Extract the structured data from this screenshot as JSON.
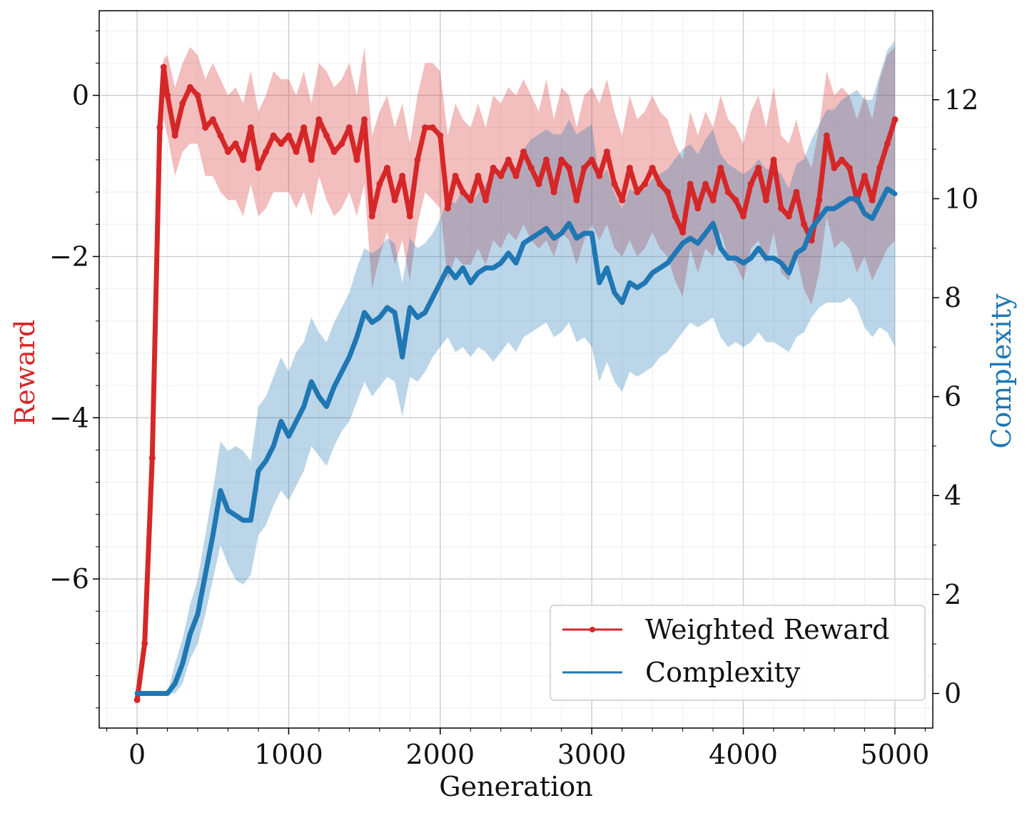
{
  "chart_data": {
    "type": "line",
    "title": "",
    "xlabel": "Generation",
    "ylabel_left": "Reward",
    "ylabel_right": "Complexity",
    "xlim": [
      -250,
      5250
    ],
    "ylim_left": [
      -7.85,
      1.05
    ],
    "ylim_right": [
      -0.7,
      13.8
    ],
    "x_ticks": [
      0,
      1000,
      2000,
      3000,
      4000,
      5000
    ],
    "x_tick_labels": [
      "0",
      "1000",
      "2000",
      "3000",
      "4000",
      "5000"
    ],
    "y_left_ticks": [
      -6,
      -4,
      -2,
      0
    ],
    "y_left_tick_labels": [
      "−6",
      "−4",
      "−2",
      "0"
    ],
    "y_right_ticks": [
      0,
      2,
      4,
      6,
      8,
      10,
      12
    ],
    "y_right_tick_labels": [
      "0",
      "2",
      "4",
      "6",
      "8",
      "10",
      "12"
    ],
    "grid": true,
    "legend_position": "lower-right",
    "colors": {
      "reward": "#d62728",
      "complexity": "#1f77b4"
    },
    "x": [
      0,
      50,
      100,
      150,
      175,
      200,
      250,
      300,
      350,
      400,
      450,
      500,
      550,
      600,
      650,
      700,
      750,
      800,
      850,
      900,
      950,
      1000,
      1050,
      1100,
      1150,
      1200,
      1250,
      1300,
      1350,
      1400,
      1450,
      1500,
      1550,
      1600,
      1650,
      1700,
      1750,
      1800,
      1850,
      1900,
      1950,
      2000,
      2050,
      2100,
      2150,
      2200,
      2250,
      2300,
      2350,
      2400,
      2450,
      2500,
      2550,
      2600,
      2650,
      2700,
      2750,
      2800,
      2850,
      2900,
      2950,
      3000,
      3050,
      3100,
      3150,
      3200,
      3250,
      3300,
      3350,
      3400,
      3450,
      3500,
      3550,
      3600,
      3650,
      3700,
      3750,
      3800,
      3850,
      3900,
      3950,
      4000,
      4050,
      4100,
      4150,
      4200,
      4250,
      4300,
      4350,
      4400,
      4450,
      4500,
      4550,
      4600,
      4650,
      4700,
      4750,
      4800,
      4850,
      4900,
      4950,
      5000
    ],
    "series": [
      {
        "name": "Weighted Reward",
        "axis": "left",
        "values": [
          -7.5,
          -6.8,
          -4.5,
          -0.4,
          0.35,
          0.0,
          -0.5,
          -0.1,
          0.1,
          0.0,
          -0.4,
          -0.3,
          -0.5,
          -0.7,
          -0.6,
          -0.8,
          -0.4,
          -0.9,
          -0.7,
          -0.5,
          -0.6,
          -0.5,
          -0.7,
          -0.4,
          -0.8,
          -0.3,
          -0.5,
          -0.7,
          -0.6,
          -0.4,
          -0.8,
          -0.3,
          -1.5,
          -1.1,
          -0.9,
          -1.3,
          -1.0,
          -1.5,
          -0.8,
          -0.4,
          -0.4,
          -0.5,
          -1.4,
          -1.0,
          -1.2,
          -1.3,
          -1.0,
          -1.3,
          -0.9,
          -1.0,
          -0.8,
          -1.0,
          -0.7,
          -0.9,
          -1.1,
          -0.8,
          -1.2,
          -0.8,
          -0.9,
          -1.3,
          -0.9,
          -0.8,
          -1.0,
          -0.7,
          -1.1,
          -1.3,
          -0.9,
          -1.2,
          -1.1,
          -0.9,
          -1.1,
          -1.2,
          -1.5,
          -1.7,
          -1.1,
          -1.4,
          -1.1,
          -1.3,
          -0.9,
          -1.2,
          -1.3,
          -1.5,
          -1.1,
          -0.9,
          -1.3,
          -0.8,
          -1.4,
          -1.5,
          -1.2,
          -1.6,
          -1.8,
          -1.3,
          -0.5,
          -0.9,
          -0.8,
          -0.9,
          -1.3,
          -1.0,
          -1.3,
          -0.9,
          -0.6,
          -0.3
        ],
        "lower": [
          -7.5,
          -7.0,
          -5.0,
          -1.0,
          -0.3,
          -0.5,
          -1.0,
          -0.7,
          -0.6,
          -0.6,
          -1.0,
          -1.0,
          -1.2,
          -1.3,
          -1.3,
          -1.5,
          -1.1,
          -1.5,
          -1.4,
          -1.2,
          -1.2,
          -1.2,
          -1.4,
          -1.2,
          -1.5,
          -1.0,
          -1.3,
          -1.5,
          -1.4,
          -1.2,
          -1.5,
          -1.1,
          -2.4,
          -2.0,
          -1.7,
          -2.1,
          -1.8,
          -2.3,
          -1.6,
          -1.2,
          -1.3,
          -1.4,
          -2.3,
          -2.0,
          -2.1,
          -2.1,
          -1.9,
          -2.1,
          -1.8,
          -1.9,
          -1.7,
          -1.8,
          -1.6,
          -1.8,
          -1.9,
          -1.8,
          -2.0,
          -1.7,
          -1.8,
          -2.1,
          -1.8,
          -1.6,
          -1.8,
          -1.6,
          -1.9,
          -2.0,
          -1.8,
          -2.0,
          -1.9,
          -1.7,
          -1.9,
          -2.0,
          -2.3,
          -2.5,
          -1.9,
          -2.2,
          -1.9,
          -2.0,
          -1.7,
          -2.0,
          -2.1,
          -2.3,
          -1.9,
          -1.8,
          -2.1,
          -1.7,
          -2.2,
          -2.3,
          -2.0,
          -2.4,
          -2.6,
          -2.2,
          -1.5,
          -1.9,
          -1.8,
          -1.9,
          -2.2,
          -2.0,
          -2.3,
          -2.1,
          -1.9,
          -1.8
        ],
        "upper": [
          -7.5,
          -6.6,
          -4.0,
          0.1,
          0.45,
          0.5,
          0.1,
          0.4,
          0.6,
          0.5,
          0.2,
          0.4,
          0.2,
          0.0,
          0.1,
          -0.1,
          0.3,
          -0.2,
          0.0,
          0.3,
          0.2,
          0.2,
          0.0,
          0.3,
          -0.1,
          0.4,
          0.3,
          0.1,
          0.2,
          0.4,
          0.0,
          0.6,
          -0.5,
          -0.2,
          0.0,
          -0.4,
          -0.1,
          -0.6,
          0.0,
          0.4,
          0.4,
          0.3,
          -0.5,
          -0.1,
          -0.3,
          -0.4,
          -0.1,
          -0.4,
          0.0,
          -0.1,
          0.1,
          0.0,
          0.2,
          0.0,
          -0.2,
          0.2,
          -0.3,
          0.1,
          0.0,
          -0.4,
          0.0,
          0.1,
          -0.1,
          0.2,
          -0.2,
          -0.5,
          0.0,
          -0.3,
          -0.2,
          0.0,
          -0.2,
          -0.3,
          -0.6,
          -0.8,
          -0.2,
          -0.5,
          -0.2,
          -0.4,
          0.0,
          -0.3,
          -0.4,
          -0.6,
          -0.2,
          0.0,
          -0.4,
          0.1,
          -0.5,
          -0.6,
          -0.3,
          -0.7,
          -0.9,
          -0.4,
          0.3,
          0.0,
          0.1,
          0.0,
          -0.3,
          0.0,
          -0.3,
          0.2,
          0.5,
          0.6
        ]
      },
      {
        "name": "Complexity",
        "axis": "right",
        "values": [
          0.0,
          0.0,
          0.0,
          0.0,
          0.0,
          0.0,
          0.2,
          0.6,
          1.2,
          1.6,
          2.4,
          3.2,
          4.1,
          3.7,
          3.6,
          3.5,
          3.5,
          4.5,
          4.7,
          5.0,
          5.5,
          5.2,
          5.5,
          5.8,
          6.3,
          6.0,
          5.8,
          6.2,
          6.5,
          6.8,
          7.2,
          7.7,
          7.5,
          7.6,
          7.8,
          7.7,
          6.8,
          7.8,
          7.6,
          7.7,
          8.0,
          8.3,
          8.6,
          8.4,
          8.6,
          8.3,
          8.5,
          8.6,
          8.6,
          8.7,
          8.9,
          8.7,
          9.1,
          9.2,
          9.3,
          9.4,
          9.2,
          9.3,
          9.5,
          9.2,
          9.3,
          9.3,
          8.3,
          8.6,
          8.1,
          7.9,
          8.3,
          8.2,
          8.3,
          8.5,
          8.6,
          8.7,
          8.9,
          9.1,
          9.2,
          9.1,
          9.3,
          9.5,
          9.0,
          8.8,
          8.8,
          8.7,
          8.8,
          9.0,
          8.8,
          8.8,
          8.7,
          8.5,
          8.9,
          9.0,
          9.4,
          9.6,
          9.8,
          9.8,
          9.9,
          10.0,
          10.0,
          9.7,
          9.6,
          9.9,
          10.2,
          10.1
        ],
        "lower": [
          0.0,
          0.0,
          0.0,
          0.0,
          0.0,
          0.0,
          0.0,
          0.2,
          0.7,
          1.0,
          1.6,
          2.3,
          3.0,
          2.6,
          2.3,
          2.2,
          2.4,
          3.2,
          3.4,
          3.8,
          4.1,
          3.9,
          4.2,
          4.5,
          5.0,
          4.8,
          4.6,
          5.0,
          5.3,
          5.5,
          5.9,
          6.3,
          6.0,
          6.2,
          6.4,
          6.3,
          5.6,
          6.4,
          6.3,
          6.5,
          6.8,
          7.0,
          7.2,
          6.9,
          7.0,
          6.8,
          7.0,
          6.9,
          6.7,
          6.9,
          7.1,
          6.9,
          7.2,
          7.3,
          7.4,
          7.5,
          7.2,
          7.3,
          7.5,
          7.1,
          7.2,
          7.0,
          6.3,
          6.7,
          6.3,
          6.1,
          6.5,
          6.4,
          6.5,
          6.6,
          6.8,
          6.9,
          7.1,
          7.3,
          7.5,
          7.4,
          7.5,
          7.6,
          7.2,
          7.0,
          7.1,
          7.0,
          7.1,
          7.3,
          7.1,
          7.1,
          7.0,
          6.9,
          7.2,
          7.3,
          7.6,
          7.8,
          7.9,
          7.9,
          7.9,
          8.0,
          7.8,
          7.4,
          7.2,
          7.4,
          7.3,
          7.0
        ],
        "upper": [
          0.0,
          0.0,
          0.0,
          0.0,
          0.0,
          0.0,
          0.6,
          1.1,
          1.8,
          2.3,
          3.2,
          4.1,
          5.1,
          4.9,
          5.0,
          4.9,
          4.7,
          5.8,
          6.0,
          6.4,
          6.8,
          6.5,
          6.9,
          7.1,
          7.6,
          7.3,
          7.1,
          7.5,
          7.8,
          8.1,
          8.6,
          9.0,
          8.9,
          9.0,
          9.2,
          9.1,
          8.3,
          9.2,
          9.0,
          9.1,
          9.3,
          9.6,
          10.0,
          9.9,
          10.2,
          9.9,
          10.1,
          10.3,
          10.5,
          10.6,
          10.8,
          10.6,
          11.0,
          11.2,
          11.3,
          11.4,
          11.3,
          11.3,
          11.6,
          11.3,
          11.4,
          11.5,
          10.4,
          10.6,
          10.1,
          9.8,
          10.2,
          10.1,
          10.2,
          10.4,
          10.5,
          10.6,
          10.8,
          11.0,
          11.1,
          10.9,
          11.2,
          11.4,
          10.9,
          10.7,
          10.6,
          10.5,
          10.6,
          10.8,
          10.6,
          10.6,
          10.5,
          10.2,
          10.7,
          10.8,
          11.2,
          11.5,
          11.8,
          11.8,
          12.0,
          12.1,
          12.2,
          12.0,
          12.0,
          12.5,
          13.0,
          13.2
        ]
      }
    ]
  }
}
